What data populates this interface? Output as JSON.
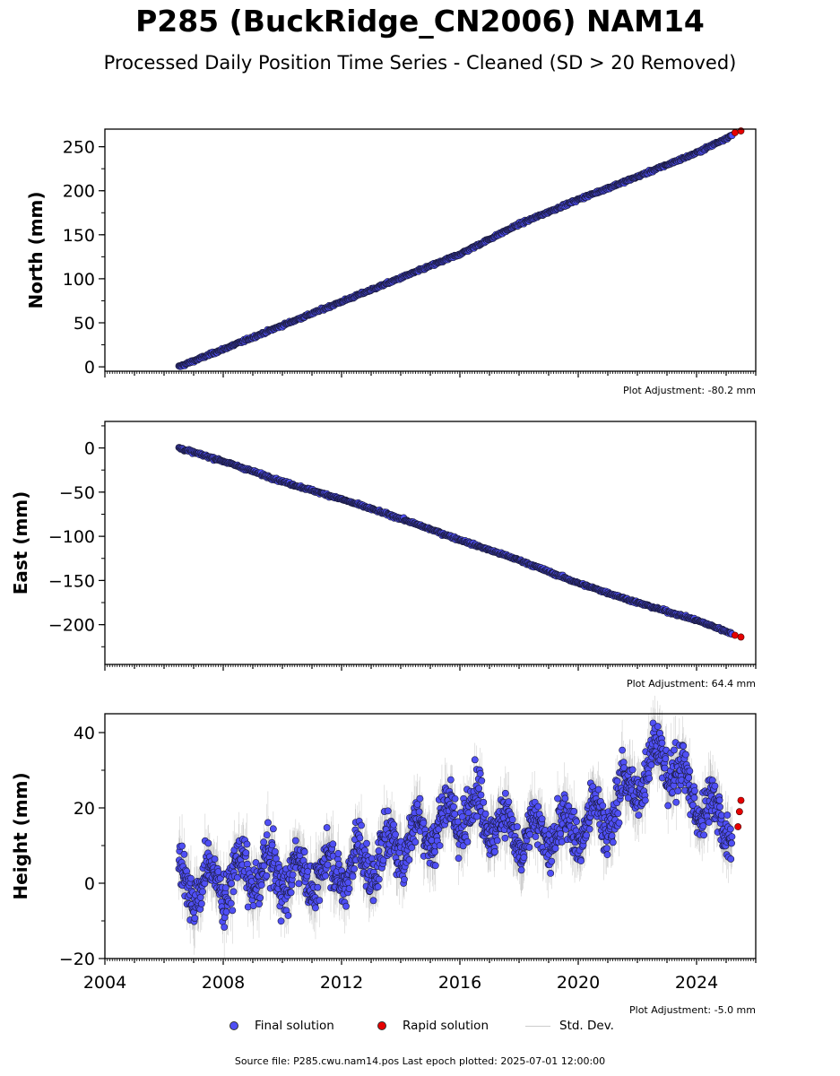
{
  "title": "P285 (BuckRidge_CN2006) NAM14",
  "subtitle": "Processed Daily Position Time Series - Cleaned (SD > 20 Removed)",
  "legend": {
    "final": "Final solution",
    "rapid": "Rapid solution",
    "std": "Std. Dev."
  },
  "source": "Source file: P285.cwu.nam14.pos  Last epoch plotted: 2025-07-01 12:00:00",
  "colors": {
    "final": "#4f4ff5",
    "rapid": "#e60000",
    "std": "#9a9a9a"
  },
  "chart_data": [
    {
      "type": "scatter",
      "ylabel": "North (mm)",
      "xlim": [
        2004,
        2026
      ],
      "ylim": [
        -5,
        270
      ],
      "yticks": [
        0,
        50,
        100,
        150,
        200,
        250
      ],
      "adjustment": "Plot Adjustment: -80.2 mm",
      "series": [
        {
          "name": "Final solution",
          "x": [
            2006.5,
            2008,
            2010,
            2012,
            2014,
            2016,
            2018,
            2020,
            2022,
            2024,
            2025.2
          ],
          "y": [
            0,
            20,
            47,
            74,
            101,
            128,
            162,
            190,
            216,
            243,
            263
          ]
        },
        {
          "name": "Rapid solution",
          "x": [
            2025.3,
            2025.5
          ],
          "y": [
            266,
            268
          ]
        }
      ]
    },
    {
      "type": "scatter",
      "ylabel": "East (mm)",
      "xlim": [
        2004,
        2026
      ],
      "ylim": [
        -245,
        30
      ],
      "yticks": [
        0,
        -50,
        -100,
        -150,
        -200
      ],
      "adjustment": "Plot Adjustment: 64.4 mm",
      "series": [
        {
          "name": "Final solution",
          "x": [
            2006.5,
            2008,
            2010,
            2012,
            2014,
            2016,
            2018,
            2020,
            2022,
            2024,
            2025.2
          ],
          "y": [
            0,
            -15,
            -38,
            -58,
            -80,
            -104,
            -127,
            -153,
            -175,
            -195,
            -210
          ]
        },
        {
          "name": "Rapid solution",
          "x": [
            2025.3,
            2025.5
          ],
          "y": [
            -212,
            -214
          ]
        }
      ]
    },
    {
      "type": "scatter",
      "ylabel": "Height (mm)",
      "xlim": [
        2004,
        2026
      ],
      "ylim": [
        -20,
        45
      ],
      "yticks": [
        -20,
        0,
        20,
        40
      ],
      "xticks": [
        2004,
        2008,
        2012,
        2016,
        2020,
        2024
      ],
      "adjustment": "Plot Adjustment: -5.0 mm",
      "series": [
        {
          "name": "Final solution",
          "x": [
            2006.5,
            2007.5,
            2009,
            2011,
            2013,
            2015,
            2016.5,
            2018,
            2019.5,
            2021,
            2022.8,
            2024,
            2025.2
          ],
          "y": [
            0,
            0,
            3,
            2,
            6,
            15,
            20,
            12,
            14,
            18,
            35,
            22,
            15
          ]
        },
        {
          "name": "Rapid solution",
          "x": [
            2025.4,
            2025.45,
            2025.5
          ],
          "y": [
            15,
            19,
            22
          ]
        }
      ]
    }
  ]
}
